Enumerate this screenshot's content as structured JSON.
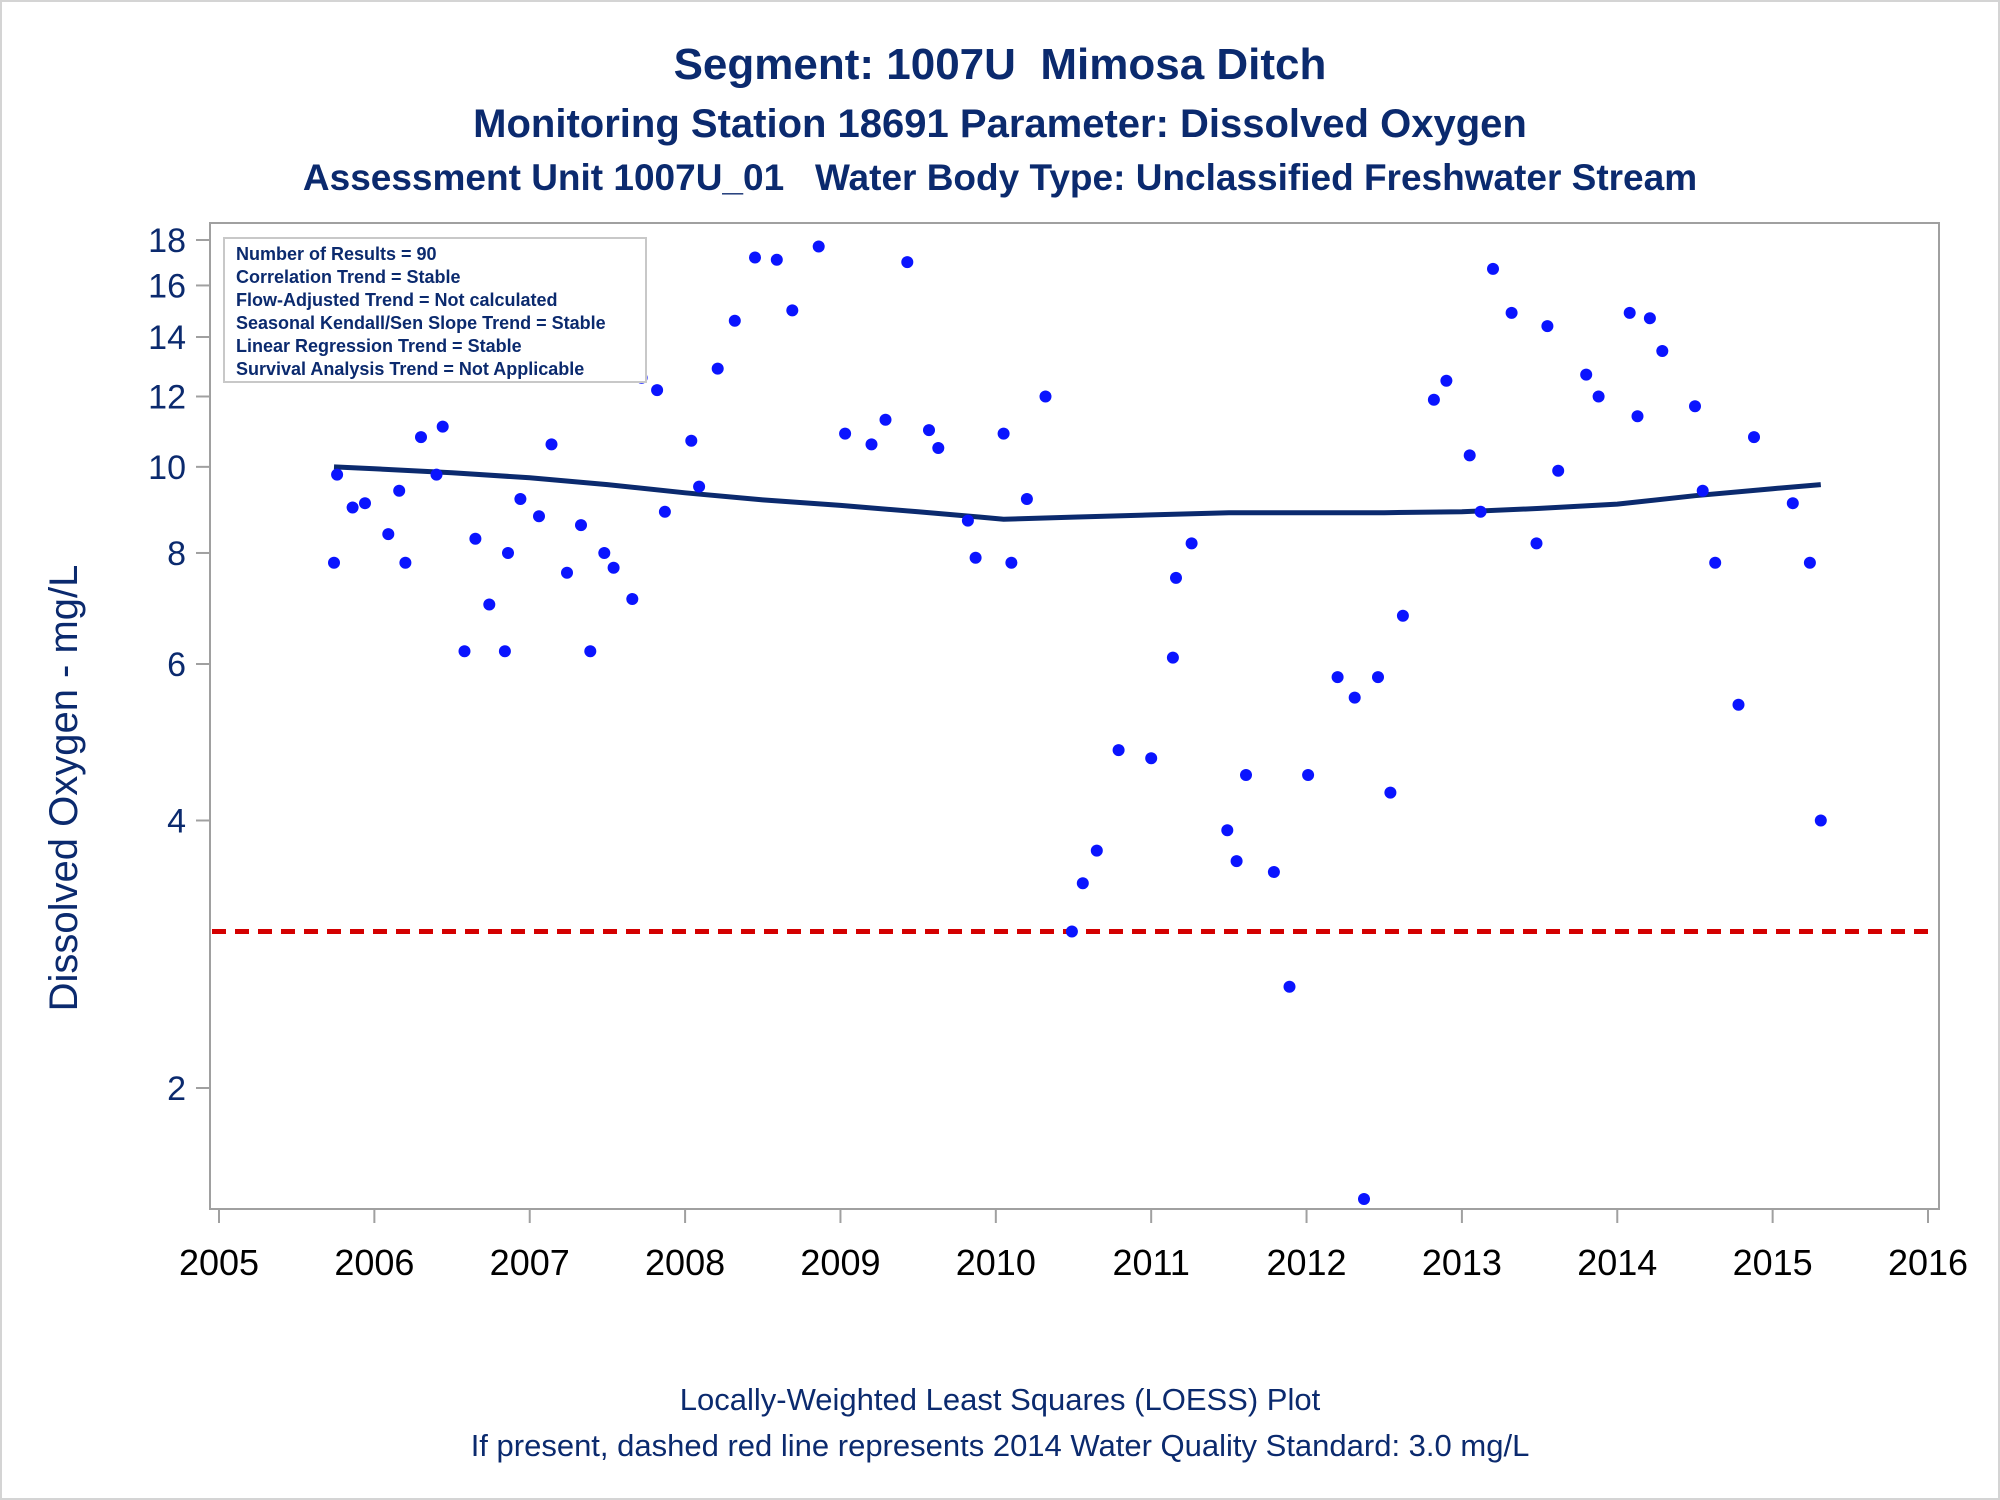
{
  "titles": {
    "line1": "Segment: 1007U  Mimosa Ditch",
    "line2": "Monitoring Station 18691 Parameter: Dissolved Oxygen",
    "line3": "Assessment Unit 1007U_01   Water Body Type: Unclassified Freshwater Stream"
  },
  "footnotes": {
    "line1": "Locally-Weighted Least Squares (LOESS) Plot",
    "line2": "If present, dashed red line represents 2014 Water Quality Standard: 3.0 mg/L"
  },
  "stats_box": [
    "Number of Results = 90",
    "Correlation Trend = Stable",
    "Flow-Adjusted Trend = Not calculated",
    "Seasonal Kendall/Sen Slope Trend = Stable",
    "Linear Regression Trend = Stable",
    "Survival Analysis Trend = Not Applicable"
  ],
  "colors": {
    "points": "#0a14ff",
    "loess": "#0b2a6e",
    "standard_line": "#d40000",
    "text": "#0b2a6e",
    "axis": "#a0a0a0"
  },
  "chart_data": {
    "type": "scatter",
    "ylabel": "Dissolved Oxygen - mg/L",
    "xlabel": "",
    "yscale": "log",
    "xlim": [
      2005,
      2016
    ],
    "ylim": [
      1.5,
      18.5
    ],
    "xticks": [
      2005,
      2006,
      2007,
      2008,
      2009,
      2010,
      2011,
      2012,
      2013,
      2014,
      2015,
      2016
    ],
    "yticks": [
      2,
      4,
      6,
      8,
      10,
      12,
      14,
      16,
      18
    ],
    "standard_line": {
      "value": 3.0,
      "style": "dashed"
    },
    "points": [
      [
        2005.74,
        7.8
      ],
      [
        2005.76,
        9.8
      ],
      [
        2005.86,
        9.0
      ],
      [
        2005.94,
        9.1
      ],
      [
        2006.09,
        8.4
      ],
      [
        2006.16,
        9.4
      ],
      [
        2006.2,
        7.8
      ],
      [
        2006.3,
        10.8
      ],
      [
        2006.4,
        9.8
      ],
      [
        2006.44,
        11.1
      ],
      [
        2006.58,
        6.2
      ],
      [
        2006.65,
        8.3
      ],
      [
        2006.74,
        7.0
      ],
      [
        2006.84,
        6.2
      ],
      [
        2006.86,
        8.0
      ],
      [
        2006.94,
        9.2
      ],
      [
        2007.06,
        8.8
      ],
      [
        2007.14,
        10.6
      ],
      [
        2007.24,
        7.6
      ],
      [
        2007.33,
        8.6
      ],
      [
        2007.39,
        6.2
      ],
      [
        2007.48,
        8.0
      ],
      [
        2007.54,
        7.7
      ],
      [
        2007.66,
        7.1
      ],
      [
        2007.72,
        12.6
      ],
      [
        2007.82,
        12.2
      ],
      [
        2007.87,
        8.9
      ],
      [
        2008.04,
        10.7
      ],
      [
        2008.09,
        9.5
      ],
      [
        2008.21,
        12.9
      ],
      [
        2008.32,
        14.6
      ],
      [
        2008.45,
        17.2
      ],
      [
        2008.59,
        17.1
      ],
      [
        2008.69,
        15.0
      ],
      [
        2008.86,
        17.7
      ],
      [
        2009.03,
        10.9
      ],
      [
        2009.2,
        10.6
      ],
      [
        2009.29,
        11.3
      ],
      [
        2009.43,
        17.0
      ],
      [
        2009.57,
        11.0
      ],
      [
        2009.63,
        10.5
      ],
      [
        2009.82,
        8.7
      ],
      [
        2009.87,
        7.9
      ],
      [
        2010.05,
        10.9
      ],
      [
        2010.1,
        7.8
      ],
      [
        2010.2,
        9.2
      ],
      [
        2010.32,
        12.0
      ],
      [
        2010.49,
        3.0
      ],
      [
        2010.56,
        3.4
      ],
      [
        2010.65,
        3.7
      ],
      [
        2010.79,
        4.8
      ],
      [
        2011.0,
        4.7
      ],
      [
        2011.14,
        6.1
      ],
      [
        2011.16,
        7.5
      ],
      [
        2011.26,
        8.2
      ],
      [
        2011.49,
        3.9
      ],
      [
        2011.55,
        3.6
      ],
      [
        2011.61,
        4.5
      ],
      [
        2011.79,
        3.5
      ],
      [
        2011.89,
        2.6
      ],
      [
        2012.01,
        4.5
      ],
      [
        2012.2,
        5.8
      ],
      [
        2012.31,
        5.5
      ],
      [
        2012.37,
        1.5
      ],
      [
        2012.46,
        5.8
      ],
      [
        2012.54,
        4.3
      ],
      [
        2012.62,
        6.8
      ],
      [
        2012.82,
        11.9
      ],
      [
        2012.9,
        12.5
      ],
      [
        2013.05,
        10.3
      ],
      [
        2013.12,
        8.9
      ],
      [
        2013.2,
        16.7
      ],
      [
        2013.32,
        14.9
      ],
      [
        2013.48,
        8.2
      ],
      [
        2013.55,
        14.4
      ],
      [
        2013.62,
        9.9
      ],
      [
        2013.8,
        12.7
      ],
      [
        2013.88,
        12.0
      ],
      [
        2014.08,
        14.9
      ],
      [
        2014.13,
        11.4
      ],
      [
        2014.21,
        14.7
      ],
      [
        2014.29,
        13.5
      ],
      [
        2014.5,
        11.7
      ],
      [
        2014.55,
        9.4
      ],
      [
        2014.63,
        7.8
      ],
      [
        2014.78,
        5.4
      ],
      [
        2014.88,
        10.8
      ],
      [
        2015.13,
        9.1
      ],
      [
        2015.24,
        7.8
      ],
      [
        2015.31,
        4.0
      ]
    ],
    "loess": [
      [
        2005.74,
        10.0
      ],
      [
        2006.0,
        9.95
      ],
      [
        2006.5,
        9.85
      ],
      [
        2007.0,
        9.72
      ],
      [
        2007.5,
        9.55
      ],
      [
        2008.0,
        9.35
      ],
      [
        2008.5,
        9.18
      ],
      [
        2009.0,
        9.05
      ],
      [
        2009.5,
        8.9
      ],
      [
        2009.9,
        8.78
      ],
      [
        2010.05,
        8.73
      ],
      [
        2010.5,
        8.78
      ],
      [
        2011.0,
        8.83
      ],
      [
        2011.5,
        8.88
      ],
      [
        2012.0,
        8.88
      ],
      [
        2012.5,
        8.88
      ],
      [
        2013.0,
        8.9
      ],
      [
        2013.5,
        8.98
      ],
      [
        2014.0,
        9.08
      ],
      [
        2014.5,
        9.28
      ],
      [
        2015.0,
        9.45
      ],
      [
        2015.31,
        9.55
      ]
    ]
  }
}
